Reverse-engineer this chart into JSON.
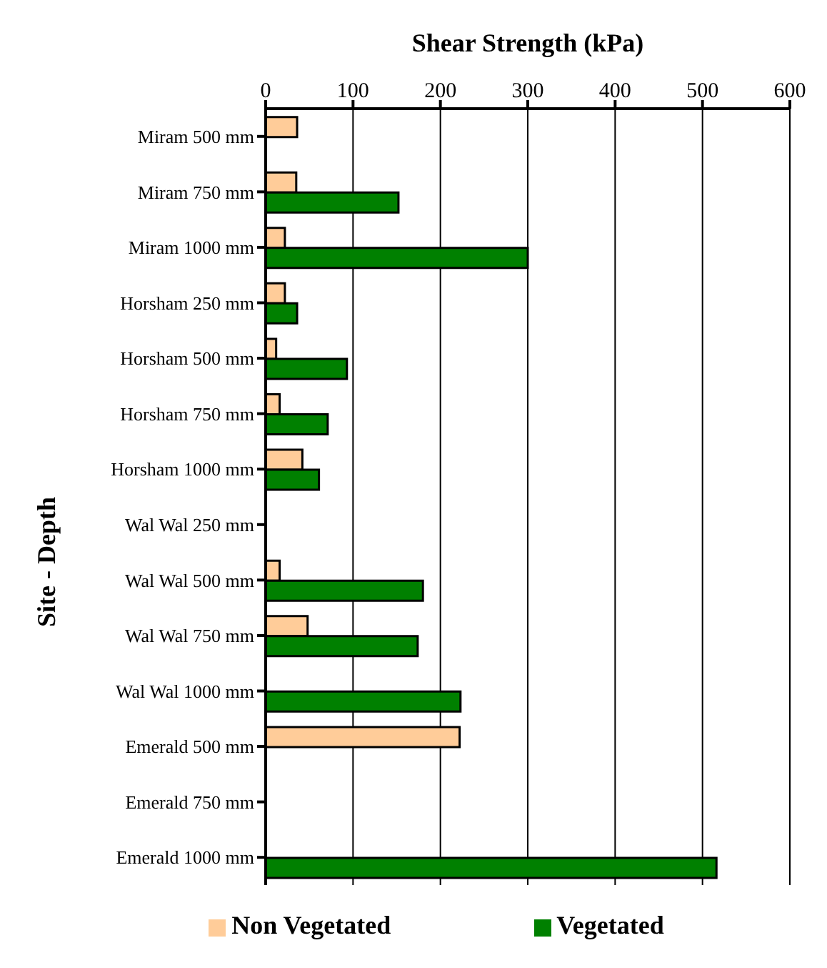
{
  "chart_data": {
    "type": "bar",
    "orientation": "horizontal",
    "xlabel": "Shear Strength (kPa)",
    "ylabel": "Site - Depth",
    "categories": [
      "Miram 500 mm",
      "Miram 750 mm",
      "Miram 1000 mm",
      "Horsham 250 mm",
      "Horsham 500 mm",
      "Horsham 750 mm",
      "Horsham 1000 mm",
      "Wal Wal 250 mm",
      "Wal Wal 500 mm",
      "Wal Wal 750 mm",
      "Wal Wal 1000 mm",
      "Emerald 500 mm",
      "Emerald 750 mm",
      "Emerald 1000 mm"
    ],
    "series": [
      {
        "name": "Non Vegetated",
        "color": "#ffcc99",
        "values": [
          36,
          35,
          22,
          22,
          12,
          16,
          42,
          null,
          16,
          48,
          null,
          222,
          null,
          null
        ]
      },
      {
        "name": "Vegetated",
        "color": "#008000",
        "values": [
          null,
          152,
          300,
          36,
          93,
          71,
          61,
          null,
          180,
          174,
          223,
          null,
          null,
          516
        ]
      }
    ],
    "xlim": [
      0,
      600
    ],
    "xticks": [
      0,
      100,
      200,
      300,
      400,
      500,
      600
    ],
    "grid": "x",
    "legend": "bottom"
  }
}
